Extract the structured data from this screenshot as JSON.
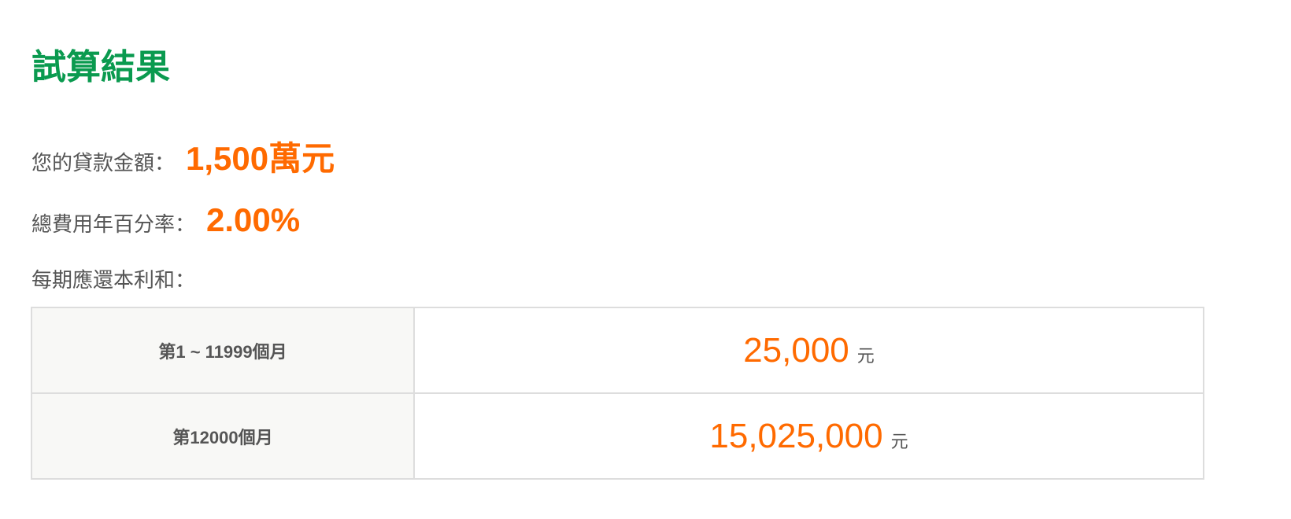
{
  "title": "試算結果",
  "loan_amount": {
    "label": "您的貸款金額：",
    "value": "1,500萬元"
  },
  "apr": {
    "label": "總費用年百分率：",
    "value": "2.00%"
  },
  "payment": {
    "label": "每期應還本利和：",
    "rows": [
      {
        "period": "第1 ~ 11999個月",
        "amount": "25,000",
        "unit": "元"
      },
      {
        "period": "第12000個月",
        "amount": "15,025,000",
        "unit": "元"
      }
    ]
  },
  "colors": {
    "title": "#0a9a4f",
    "accent": "#ff6a00"
  }
}
